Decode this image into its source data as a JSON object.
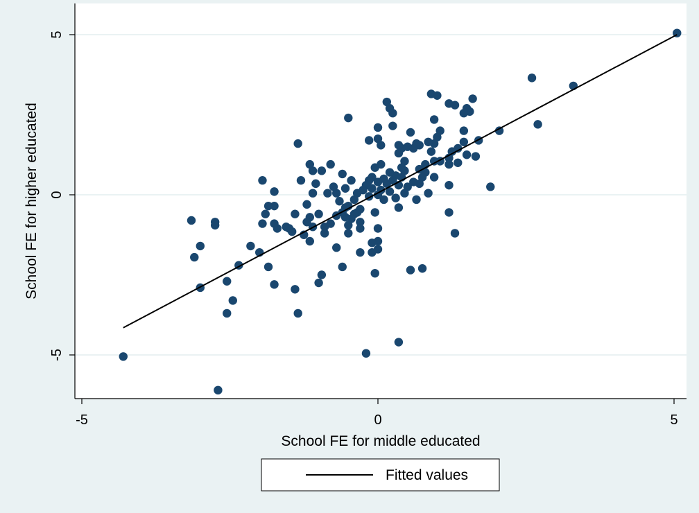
{
  "chart_data": {
    "type": "scatter",
    "title": "",
    "xlabel": "School FE for middle educated",
    "ylabel": "School FE for higher educated",
    "xlim": [
      -5,
      5
    ],
    "ylim": [
      -5,
      5
    ],
    "x_ticks": [
      -5,
      0,
      5
    ],
    "y_ticks": [
      -5,
      0,
      5
    ],
    "x_tick_labels": [
      "-5",
      "0",
      "5"
    ],
    "y_tick_labels": [
      "-5",
      "0",
      "5"
    ],
    "grid": "horizontal",
    "legend_position": "bottom",
    "colors": {
      "markers": "#1a476f",
      "fit_line": "#000000",
      "outer_background": "#eaf2f3",
      "plot_background": "#ffffff",
      "grid": "#eaf2f3"
    },
    "series": [
      {
        "marker": "circle",
        "points": [
          [
            5.05,
            5.05
          ],
          [
            3.3,
            3.4
          ],
          [
            2.6,
            3.65
          ],
          [
            2.7,
            2.2
          ],
          [
            2.05,
            2.0
          ],
          [
            1.9,
            0.25
          ],
          [
            1.7,
            1.7
          ],
          [
            1.65,
            1.2
          ],
          [
            1.6,
            3.0
          ],
          [
            1.55,
            2.6
          ],
          [
            1.5,
            2.7
          ],
          [
            1.45,
            2.55
          ],
          [
            1.5,
            1.25
          ],
          [
            1.45,
            2.0
          ],
          [
            1.45,
            1.65
          ],
          [
            1.35,
            1.45
          ],
          [
            1.3,
            2.8
          ],
          [
            1.35,
            1.0
          ],
          [
            1.3,
            -1.2
          ],
          [
            1.25,
            1.35
          ],
          [
            1.2,
            1.15
          ],
          [
            1.2,
            2.85
          ],
          [
            1.2,
            0.95
          ],
          [
            1.2,
            0.3
          ],
          [
            1.2,
            -0.55
          ],
          [
            1.05,
            2.0
          ],
          [
            1.05,
            1.05
          ],
          [
            1.0,
            3.1
          ],
          [
            1.0,
            1.8
          ],
          [
            0.95,
            2.35
          ],
          [
            0.95,
            1.6
          ],
          [
            0.95,
            1.05
          ],
          [
            0.95,
            0.55
          ],
          [
            0.9,
            3.15
          ],
          [
            0.9,
            1.35
          ],
          [
            0.85,
            1.65
          ],
          [
            0.85,
            0.05
          ],
          [
            0.8,
            0.95
          ],
          [
            0.8,
            0.7
          ],
          [
            0.75,
            -2.3
          ],
          [
            0.75,
            0.55
          ],
          [
            0.7,
            0.8
          ],
          [
            0.7,
            1.55
          ],
          [
            0.7,
            0.35
          ],
          [
            0.65,
            1.6
          ],
          [
            0.65,
            -0.15
          ],
          [
            0.6,
            0.4
          ],
          [
            0.6,
            1.45
          ],
          [
            0.55,
            1.95
          ],
          [
            0.55,
            -2.35
          ],
          [
            0.5,
            1.5
          ],
          [
            0.5,
            0.25
          ],
          [
            0.45,
            0.75
          ],
          [
            0.45,
            1.05
          ],
          [
            0.45,
            0.05
          ],
          [
            0.4,
            1.45
          ],
          [
            0.4,
            0.85
          ],
          [
            0.4,
            0.55
          ],
          [
            0.35,
            1.55
          ],
          [
            0.35,
            1.3
          ],
          [
            0.35,
            0.3
          ],
          [
            0.35,
            -0.4
          ],
          [
            0.35,
            -4.6
          ],
          [
            0.3,
            0.6
          ],
          [
            0.3,
            -0.1
          ],
          [
            0.25,
            2.55
          ],
          [
            0.25,
            2.15
          ],
          [
            0.25,
            0.45
          ],
          [
            0.2,
            2.7
          ],
          [
            0.2,
            0.1
          ],
          [
            0.2,
            0.7
          ],
          [
            0.15,
            2.9
          ],
          [
            0.15,
            0.35
          ],
          [
            0.1,
            0.5
          ],
          [
            0.1,
            -0.15
          ],
          [
            0.05,
            0.95
          ],
          [
            0.05,
            0.15
          ],
          [
            0.0,
            2.1
          ],
          [
            0.0,
            1.75
          ],
          [
            0.05,
            1.55
          ],
          [
            0.0,
            0.4
          ],
          [
            0.0,
            0.0
          ],
          [
            -0.05,
            -0.55
          ],
          [
            0.0,
            -1.05
          ],
          [
            0.0,
            -1.45
          ],
          [
            0.0,
            -1.7
          ],
          [
            -0.05,
            -2.45
          ],
          [
            -0.05,
            0.85
          ],
          [
            -0.1,
            0.55
          ],
          [
            -0.1,
            0.2
          ],
          [
            -0.1,
            -1.5
          ],
          [
            -0.1,
            -1.8
          ],
          [
            -0.15,
            1.7
          ],
          [
            -0.15,
            0.45
          ],
          [
            -0.15,
            -0.05
          ],
          [
            -0.2,
            0.3
          ],
          [
            -0.2,
            -4.95
          ],
          [
            -0.25,
            0.15
          ],
          [
            -0.3,
            -0.45
          ],
          [
            -0.3,
            -0.85
          ],
          [
            -0.3,
            -1.8
          ],
          [
            -0.3,
            -1.05
          ],
          [
            -0.35,
            0.05
          ],
          [
            -0.35,
            -0.55
          ],
          [
            -0.4,
            -0.15
          ],
          [
            -0.4,
            -0.6
          ],
          [
            -0.45,
            0.45
          ],
          [
            -0.45,
            -0.75
          ],
          [
            -0.5,
            2.4
          ],
          [
            -0.5,
            -0.35
          ],
          [
            -0.5,
            -0.95
          ],
          [
            -0.5,
            -1.2
          ],
          [
            -0.55,
            0.2
          ],
          [
            -0.55,
            -0.4
          ],
          [
            -0.55,
            -0.7
          ],
          [
            -0.6,
            0.65
          ],
          [
            -0.6,
            -2.25
          ],
          [
            -0.6,
            -0.55
          ],
          [
            -0.65,
            -0.2
          ],
          [
            -0.7,
            0.05
          ],
          [
            -0.7,
            -0.65
          ],
          [
            -0.7,
            -1.65
          ],
          [
            -0.75,
            0.25
          ],
          [
            -0.8,
            -0.9
          ],
          [
            -0.8,
            0.95
          ],
          [
            -0.85,
            0.05
          ],
          [
            -0.9,
            -1.0
          ],
          [
            -0.9,
            -1.2
          ],
          [
            -0.95,
            0.75
          ],
          [
            -0.95,
            -2.5
          ],
          [
            -1.0,
            -0.6
          ],
          [
            -1.0,
            -2.75
          ],
          [
            -1.05,
            0.35
          ],
          [
            -1.1,
            0.05
          ],
          [
            -1.1,
            0.75
          ],
          [
            -1.1,
            -1.0
          ],
          [
            -1.15,
            0.95
          ],
          [
            -1.15,
            -0.7
          ],
          [
            -1.15,
            -1.45
          ],
          [
            -1.2,
            -0.3
          ],
          [
            -1.2,
            -0.85
          ],
          [
            -1.25,
            -1.25
          ],
          [
            -1.3,
            0.45
          ],
          [
            -1.35,
            1.6
          ],
          [
            -1.35,
            -3.7
          ],
          [
            -1.4,
            -0.6
          ],
          [
            -1.4,
            -2.95
          ],
          [
            -1.45,
            -1.15
          ],
          [
            -1.5,
            -1.05
          ],
          [
            -1.55,
            -1.0
          ],
          [
            -1.7,
            -1.05
          ],
          [
            -1.75,
            -2.8
          ],
          [
            -1.75,
            -0.9
          ],
          [
            -1.75,
            -0.35
          ],
          [
            -1.75,
            0.1
          ],
          [
            -1.85,
            -0.35
          ],
          [
            -1.9,
            -0.6
          ],
          [
            -1.95,
            -0.9
          ],
          [
            -1.95,
            0.45
          ],
          [
            -1.85,
            -2.25
          ],
          [
            -2.0,
            -1.8
          ],
          [
            -2.15,
            -1.6
          ],
          [
            -2.35,
            -2.2
          ],
          [
            -2.45,
            -3.3
          ],
          [
            -2.55,
            -2.7
          ],
          [
            -2.55,
            -3.7
          ],
          [
            -2.75,
            -0.85
          ],
          [
            -2.75,
            -0.95
          ],
          [
            -3.0,
            -2.9
          ],
          [
            -3.0,
            -1.6
          ],
          [
            -3.1,
            -1.95
          ],
          [
            -3.15,
            -0.8
          ],
          [
            -2.7,
            -6.1
          ],
          [
            -4.3,
            -5.05
          ]
        ]
      },
      {
        "name": "Fitted values",
        "type": "line",
        "points": [
          [
            -4.3,
            -4.15
          ],
          [
            5.05,
            5.0
          ]
        ]
      }
    ]
  },
  "legend": {
    "entries": [
      "Fitted values"
    ]
  }
}
